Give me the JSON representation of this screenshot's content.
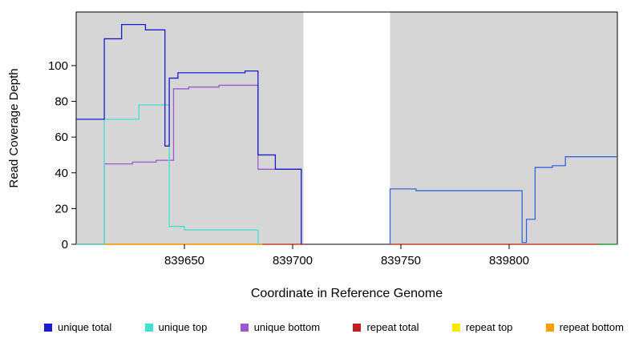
{
  "chart_data": {
    "type": "line",
    "subtype": "step-coverage",
    "title": "",
    "xlabel": "Coordinate in Reference Genome",
    "ylabel": "Read Coverage Depth",
    "xlim": [
      839600,
      839850
    ],
    "ylim": [
      0,
      130
    ],
    "x_ticks": [
      839650,
      839700,
      839750,
      839800
    ],
    "y_ticks": [
      0,
      20,
      40,
      60,
      80,
      100
    ],
    "grid": false,
    "legend_position": "bottom",
    "plot_bg": "#d6d6d6",
    "shaded_regions": [
      [
        839600,
        839705
      ],
      [
        839745,
        839850
      ]
    ],
    "unshaded_gap": [
      839705,
      839745
    ],
    "series": [
      {
        "name": "repeat top",
        "color": "#ffe800",
        "steps": [
          [
            839600,
            0
          ]
        ],
        "end": 839705
      },
      {
        "name": "repeat top",
        "color": "#ffe800",
        "steps": [
          [
            839745,
            0
          ]
        ],
        "end": 839850
      },
      {
        "name": "repeat total",
        "color": "#c02020",
        "steps": [
          [
            839600,
            0
          ]
        ],
        "end": 839705
      },
      {
        "name": "repeat total",
        "color": "#c02020",
        "steps": [
          [
            839745,
            0
          ]
        ],
        "end": 839850
      },
      {
        "name": "repeat bottom",
        "color": "#ff9d00",
        "steps": [
          [
            839609,
            0
          ]
        ],
        "end": 839686
      },
      {
        "name": "unique bottom",
        "color": "#9b59d0",
        "steps": [
          [
            839600,
            0
          ],
          [
            839613,
            45
          ],
          [
            839626,
            46
          ],
          [
            839637,
            47
          ],
          [
            839645,
            87
          ],
          [
            839652,
            88
          ],
          [
            839666,
            89
          ],
          [
            839684,
            42
          ],
          [
            839704,
            0
          ]
        ],
        "end": 839704
      },
      {
        "name": "unique top",
        "color": "#40e0d0",
        "steps": [
          [
            839600,
            0
          ],
          [
            839613,
            70
          ],
          [
            839629,
            78
          ],
          [
            839643,
            10
          ],
          [
            839650,
            8
          ],
          [
            839684,
            0
          ]
        ],
        "end": 839684
      },
      {
        "name": "unique total",
        "color": "#1c1ccd",
        "steps": [
          [
            839600,
            70
          ],
          [
            839613,
            115
          ],
          [
            839621,
            123
          ],
          [
            839632,
            120
          ],
          [
            839641,
            55
          ],
          [
            839643,
            93
          ],
          [
            839647,
            96
          ],
          [
            839678,
            97
          ],
          [
            839684,
            50
          ],
          [
            839692,
            42
          ],
          [
            839704,
            0
          ]
        ],
        "end": 839704
      },
      {
        "name": "unique total",
        "color": "#3566d8",
        "steps": [
          [
            839745,
            0
          ],
          [
            839745,
            31
          ],
          [
            839757,
            30
          ],
          [
            839806,
            1
          ],
          [
            839808,
            14
          ],
          [
            839812,
            43
          ],
          [
            839820,
            44
          ],
          [
            839826,
            49
          ]
        ],
        "end": 839850
      },
      {
        "name": "green segment",
        "color": "#00b050",
        "steps": [
          [
            839841,
            0
          ]
        ],
        "end": 839850
      }
    ],
    "legend": [
      {
        "label": "unique total",
        "color": "#1c1ccd"
      },
      {
        "label": "unique top",
        "color": "#40e0d0"
      },
      {
        "label": "unique bottom",
        "color": "#9b59d0"
      },
      {
        "label": "repeat total",
        "color": "#c02020"
      },
      {
        "label": "repeat top",
        "color": "#ffe800"
      },
      {
        "label": "repeat bottom",
        "color": "#ff9d00"
      }
    ]
  }
}
